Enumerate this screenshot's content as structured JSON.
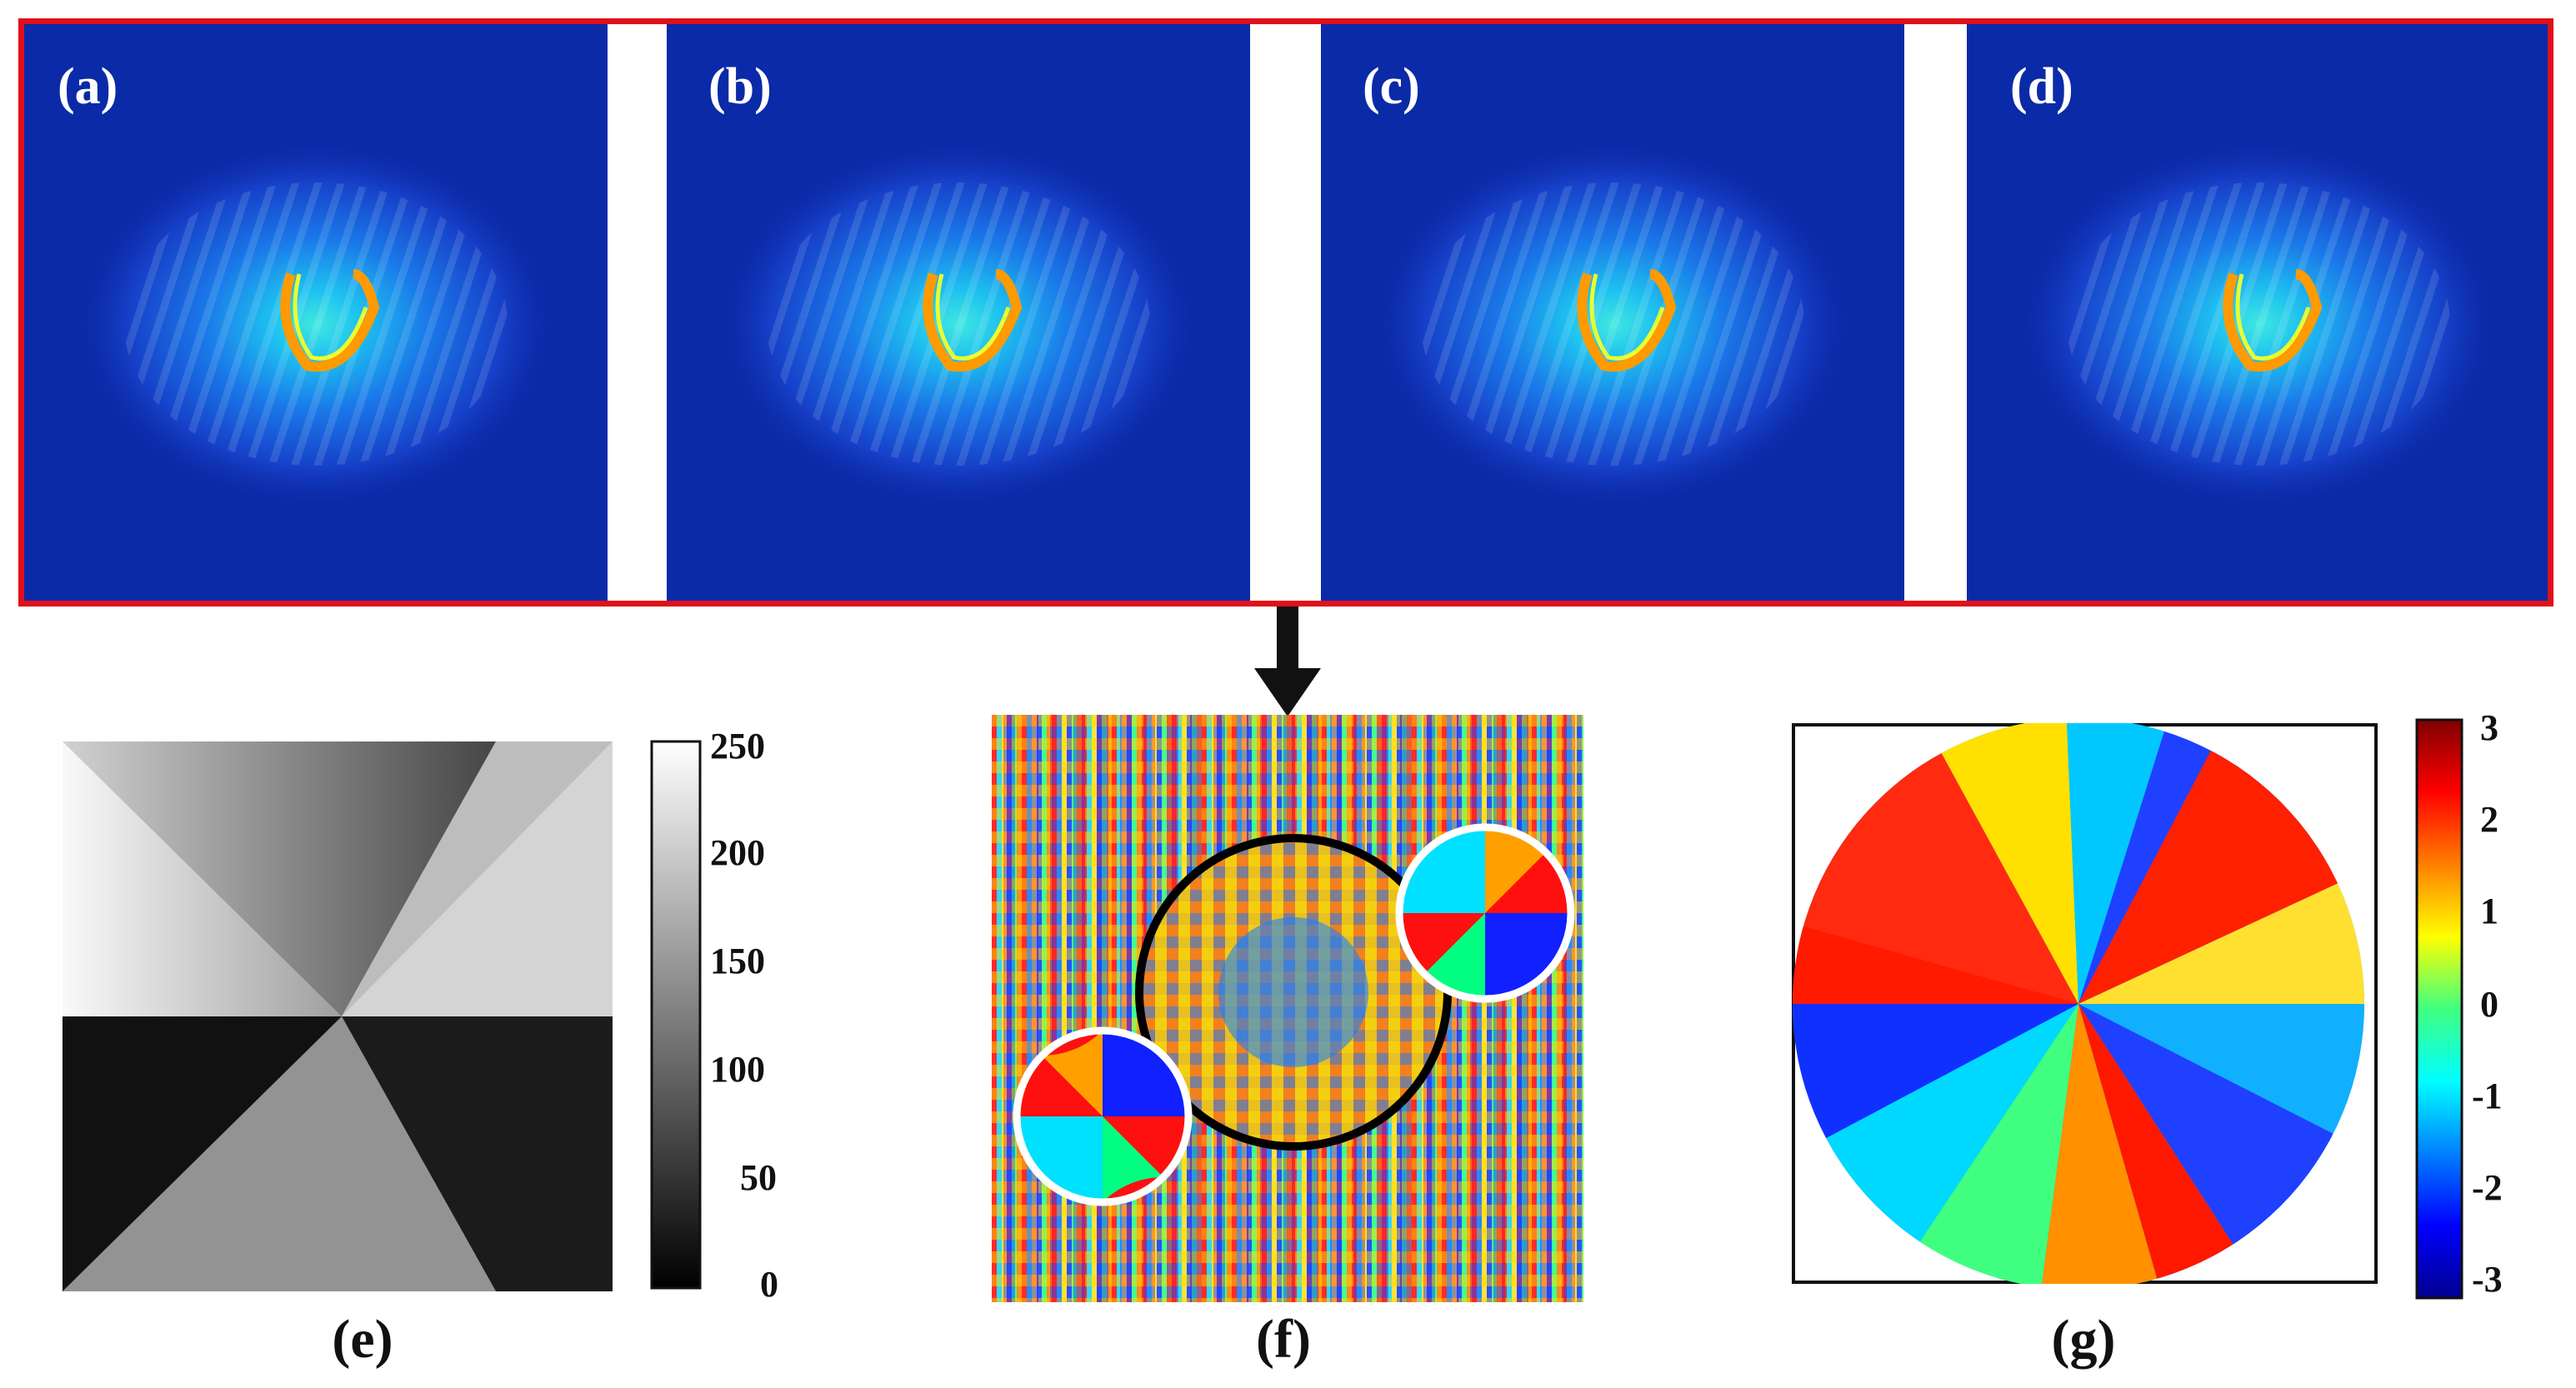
{
  "figure": {
    "top_row_panels": [
      {
        "label": "(a)"
      },
      {
        "label": "(b)"
      },
      {
        "label": "(c)"
      },
      {
        "label": "(d)"
      }
    ],
    "captions": {
      "e": "(e)",
      "f": "(f)",
      "g": "(g)"
    },
    "panel_e": {
      "colormap": "gray",
      "colorbar_ticks": [
        "250",
        "200",
        "150",
        "100",
        "50",
        "0"
      ]
    },
    "panel_g": {
      "colormap": "jet",
      "colorbar_ticks": [
        "3",
        "2",
        "1",
        "0",
        "-1",
        "-2",
        "-3"
      ]
    },
    "colors": {
      "frame_border": "#e0101a",
      "spectrum_background": "#0a2aa8",
      "arrow": "#111111"
    }
  }
}
